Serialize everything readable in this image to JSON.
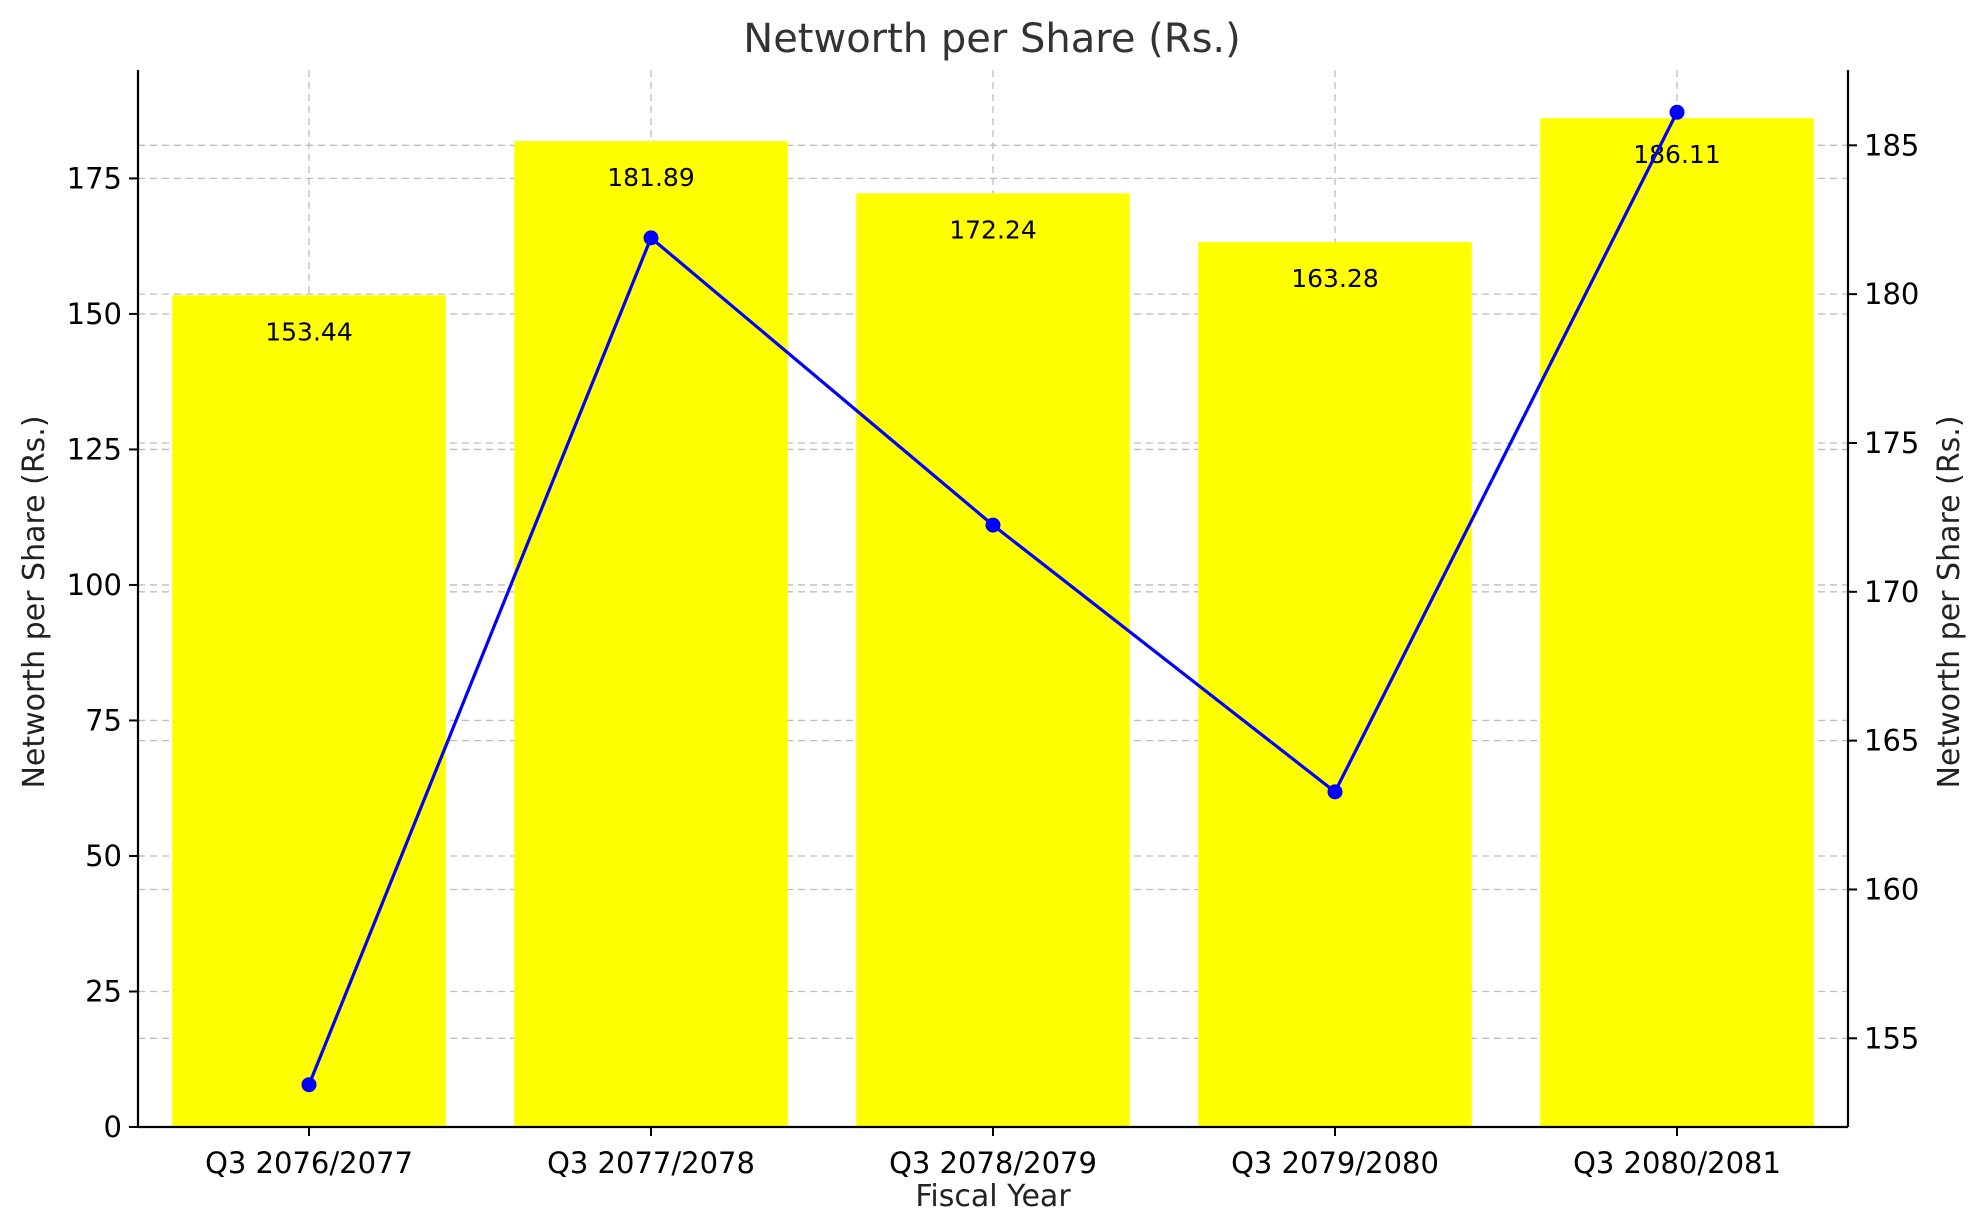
{
  "chart_data": {
    "type": "bar",
    "title": "Networth per Share (Rs.)",
    "xlabel": "Fiscal Year",
    "ylabel": "Networth per Share (Rs.)",
    "y2label": "Networth per Share (Rs.)",
    "categories": [
      "Q3 2076/2077",
      "Q3 2077/2078",
      "Q3 2078/2079",
      "Q3 2079/2080",
      "Q3 2080/2081"
    ],
    "values": [
      153.44,
      181.89,
      172.24,
      163.28,
      186.11
    ],
    "data_labels": [
      "153.44",
      "181.89",
      "172.24",
      "163.28",
      "186.11"
    ],
    "line_series": {
      "axis": "right",
      "values": [
        153.44,
        181.89,
        172.24,
        163.28,
        186.11
      ],
      "color": "#0000ff"
    },
    "bar_color": "#ffff00",
    "ylim": [
      0,
      195
    ],
    "y_ticks": [
      0,
      25,
      50,
      75,
      100,
      125,
      150,
      175
    ],
    "y2lim": [
      152.02,
      187.53
    ],
    "y2_ticks": [
      155,
      160,
      165,
      170,
      175,
      180,
      185
    ],
    "grid": true,
    "legend": "none"
  }
}
